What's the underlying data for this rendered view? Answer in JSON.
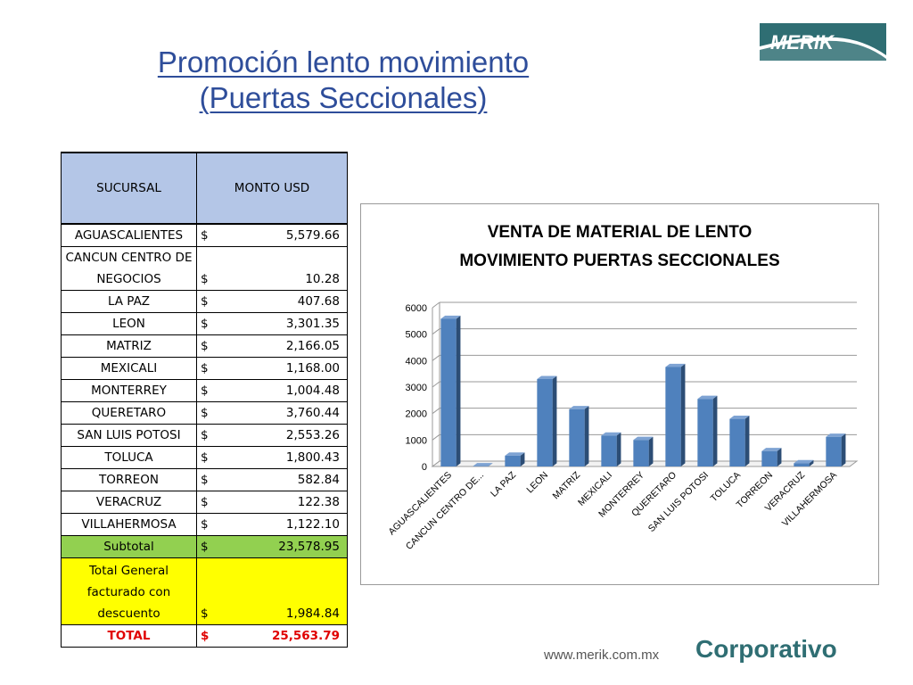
{
  "slide": {
    "title_line1": "Promoción lento movimiento",
    "title_line2": "(Puertas Seccionales)",
    "logo_text": "MERIK",
    "footer_url": "www.merik.com.mx",
    "footer_brand": "Corporativo"
  },
  "table": {
    "headers": [
      "SUCURSAL",
      "MONTO USD"
    ],
    "currency": "$",
    "rows": [
      {
        "name": "AGUASCALIENTES",
        "amount": "5,579.66"
      },
      {
        "name": "CANCUN CENTRO DE NEGOCIOS",
        "amount": "10.28"
      },
      {
        "name": "LA PAZ",
        "amount": "407.68"
      },
      {
        "name": "LEON",
        "amount": "3,301.35"
      },
      {
        "name": "MATRIZ",
        "amount": "2,166.05"
      },
      {
        "name": "MEXICALI",
        "amount": "1,168.00"
      },
      {
        "name": "MONTERREY",
        "amount": "1,004.48"
      },
      {
        "name": "QUERETARO",
        "amount": "3,760.44"
      },
      {
        "name": "SAN LUIS POTOSI",
        "amount": "2,553.26"
      },
      {
        "name": "TOLUCA",
        "amount": "1,800.43"
      },
      {
        "name": "TORREON",
        "amount": "582.84"
      },
      {
        "name": "VERACRUZ",
        "amount": "122.38"
      },
      {
        "name": "VILLAHERMOSA",
        "amount": "1,122.10"
      }
    ],
    "subtotal": {
      "name": "Subtotal",
      "amount": "23,578.95"
    },
    "general": {
      "name": "Total General facturado con descuento",
      "amount": "1,984.84"
    },
    "total": {
      "name": "TOTAL",
      "amount": "25,563.79"
    },
    "colors": {
      "header": "#b4c6e7",
      "subtotal": "#92d050",
      "general": "#ffff00",
      "total_text": "#e00000"
    }
  },
  "chart_data": {
    "type": "bar",
    "title_line1": "VENTA DE MATERIAL DE LENTO",
    "title_line2": "MOVIMIENTO PUERTAS SECCIONALES",
    "categories": [
      "AGUASCALIENTES",
      "CANCUN CENTRO DE...",
      "LA PAZ",
      "LEON",
      "MATRIZ",
      "MEXICALI",
      "MONTERREY",
      "QUERETARO",
      "SAN LUIS POTOSI",
      "TOLUCA",
      "TORREON",
      "VERACRUZ",
      "VILLAHERMOSA"
    ],
    "values": [
      5579.66,
      10.28,
      407.68,
      3301.35,
      2166.05,
      1168.0,
      1004.48,
      3760.44,
      2553.26,
      1800.43,
      582.84,
      122.38,
      1122.1
    ],
    "ylim": [
      0,
      6000
    ],
    "yticks": [
      0,
      1000,
      2000,
      3000,
      4000,
      5000,
      6000
    ],
    "grid": true,
    "legend": "none",
    "bar_color": "#4f81bd"
  }
}
